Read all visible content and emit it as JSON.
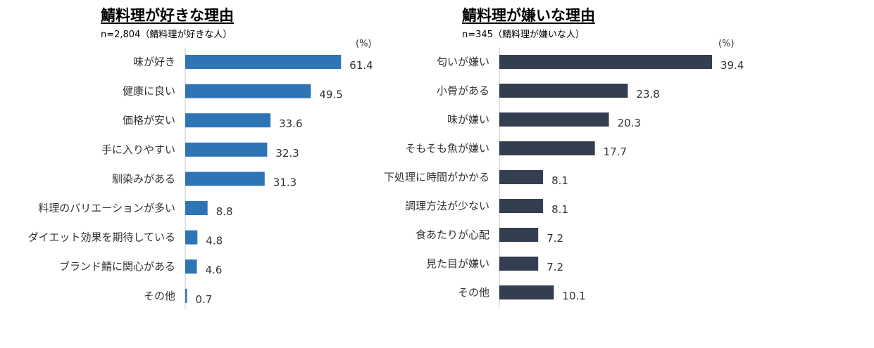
{
  "chart_data": [
    {
      "type": "bar",
      "orientation": "horizontal",
      "title": "鯖料理が好きな理由",
      "subtitle": "n=2,804（鯖料理が好きな人）",
      "unit": "(%)",
      "categories": [
        "味が好き",
        "健康に良い",
        "価格が安い",
        "手に入りやすい",
        "馴染みがある",
        "料理のバリエーションが多い",
        "ダイエット効果を期待している",
        "ブランド鯖に関心がある",
        "その他"
      ],
      "values": [
        61.4,
        49.5,
        33.6,
        32.3,
        31.3,
        8.8,
        4.8,
        4.6,
        0.7
      ],
      "value_labels": [
        "61.4",
        "49.5",
        "33.6",
        "32.3",
        "31.3",
        "8.8",
        "4.8",
        "4.6",
        "0.7"
      ],
      "bar_color": "#2e75b6",
      "xlim": [
        0,
        70
      ],
      "grid": false
    },
    {
      "type": "bar",
      "orientation": "horizontal",
      "title": "鯖料理が嫌いな理由",
      "subtitle": "n=345（鯖料理が嫌いな人）",
      "unit": "(%)",
      "categories": [
        "匂いが嫌い",
        "小骨がある",
        "味が嫌い",
        "そもそも魚が嫌い",
        "下処理に時間がかかる",
        "調理方法が少ない",
        "食あたりが心配",
        "見た目が嫌い",
        "その他"
      ],
      "values": [
        39.4,
        23.8,
        20.3,
        17.7,
        8.1,
        8.1,
        7.2,
        7.2,
        10.1
      ],
      "value_labels": [
        "39.4",
        "23.8",
        "20.3",
        "17.7",
        "8.1",
        "8.1",
        "7.2",
        "7.2",
        "10.1"
      ],
      "bar_color": "#333f50",
      "xlim": [
        0,
        45
      ],
      "grid": false
    }
  ]
}
